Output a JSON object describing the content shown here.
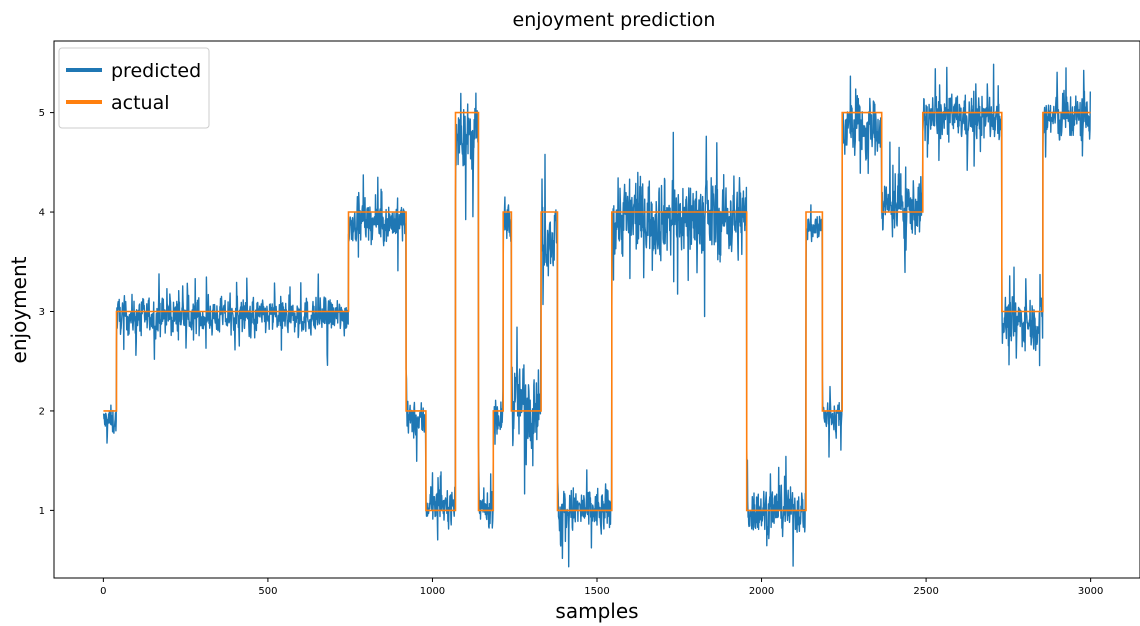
{
  "chart_data": {
    "type": "line",
    "title": "enjoyment prediction",
    "xlabel": "samples",
    "ylabel": "enjoyment",
    "xlim": [
      -150,
      3150
    ],
    "ylim": [
      0.32,
      5.72
    ],
    "xticks": [
      0,
      500,
      1000,
      1500,
      2000,
      2500,
      3000
    ],
    "yticks": [
      1,
      2,
      3,
      4,
      5
    ],
    "grid": false,
    "legend_position": "top-left",
    "series": [
      {
        "name": "predicted",
        "color": "#1f77b4",
        "kind": "noisy",
        "n_samples": 3000,
        "x_step": 1,
        "levels": [
          {
            "x_start": 0,
            "x_end": 40,
            "mean": 1.9,
            "spread": 0.13
          },
          {
            "x_start": 40,
            "x_end": 745,
            "mean": 2.95,
            "spread": 0.16
          },
          {
            "x_start": 745,
            "x_end": 920,
            "mean": 3.9,
            "spread": 0.18
          },
          {
            "x_start": 920,
            "x_end": 980,
            "mean": 1.9,
            "spread": 0.16
          },
          {
            "x_start": 980,
            "x_end": 1070,
            "mean": 1.05,
            "spread": 0.15
          },
          {
            "x_start": 1070,
            "x_end": 1140,
            "mean": 4.75,
            "spread": 0.28
          },
          {
            "x_start": 1140,
            "x_end": 1185,
            "mean": 1.0,
            "spread": 0.15
          },
          {
            "x_start": 1185,
            "x_end": 1215,
            "mean": 1.95,
            "spread": 0.2
          },
          {
            "x_start": 1215,
            "x_end": 1240,
            "mean": 3.9,
            "spread": 0.2
          },
          {
            "x_start": 1240,
            "x_end": 1330,
            "mean": 2.1,
            "spread": 0.35
          },
          {
            "x_start": 1330,
            "x_end": 1380,
            "mean": 3.75,
            "spread": 0.3
          },
          {
            "x_start": 1380,
            "x_end": 1545,
            "mean": 1.0,
            "spread": 0.2
          },
          {
            "x_start": 1545,
            "x_end": 1955,
            "mean": 3.95,
            "spread": 0.35
          },
          {
            "x_start": 1955,
            "x_end": 2135,
            "mean": 1.0,
            "spread": 0.2
          },
          {
            "x_start": 2135,
            "x_end": 2185,
            "mean": 3.85,
            "spread": 0.15
          },
          {
            "x_start": 2185,
            "x_end": 2245,
            "mean": 1.95,
            "spread": 0.15
          },
          {
            "x_start": 2245,
            "x_end": 2365,
            "mean": 4.85,
            "spread": 0.25
          },
          {
            "x_start": 2365,
            "x_end": 2490,
            "mean": 4.05,
            "spread": 0.25
          },
          {
            "x_start": 2490,
            "x_end": 2730,
            "mean": 4.95,
            "spread": 0.2
          },
          {
            "x_start": 2730,
            "x_end": 2855,
            "mean": 2.9,
            "spread": 0.22
          },
          {
            "x_start": 2855,
            "x_end": 3000,
            "mean": 4.95,
            "spread": 0.22
          }
        ]
      },
      {
        "name": "actual",
        "color": "#ff7f0e",
        "kind": "step",
        "points": [
          [
            0,
            2
          ],
          [
            40,
            2
          ],
          [
            40,
            3
          ],
          [
            745,
            3
          ],
          [
            745,
            4
          ],
          [
            920,
            4
          ],
          [
            920,
            2
          ],
          [
            980,
            2
          ],
          [
            980,
            1
          ],
          [
            1070,
            1
          ],
          [
            1070,
            5
          ],
          [
            1140,
            5
          ],
          [
            1140,
            1
          ],
          [
            1185,
            1
          ],
          [
            1185,
            2
          ],
          [
            1215,
            2
          ],
          [
            1215,
            4
          ],
          [
            1240,
            4
          ],
          [
            1240,
            2
          ],
          [
            1330,
            2
          ],
          [
            1330,
            4
          ],
          [
            1380,
            4
          ],
          [
            1380,
            1
          ],
          [
            1545,
            1
          ],
          [
            1545,
            4
          ],
          [
            1955,
            4
          ],
          [
            1955,
            1
          ],
          [
            2135,
            1
          ],
          [
            2135,
            4
          ],
          [
            2185,
            4
          ],
          [
            2185,
            2
          ],
          [
            2245,
            2
          ],
          [
            2245,
            5
          ],
          [
            2365,
            5
          ],
          [
            2365,
            4
          ],
          [
            2490,
            4
          ],
          [
            2490,
            5
          ],
          [
            2730,
            5
          ],
          [
            2730,
            3
          ],
          [
            2855,
            3
          ],
          [
            2855,
            5
          ],
          [
            3000,
            5
          ]
        ]
      }
    ]
  }
}
